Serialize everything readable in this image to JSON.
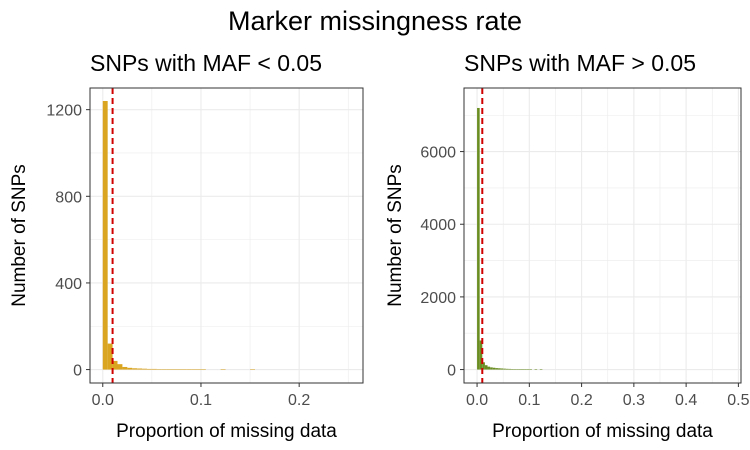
{
  "title": "Marker missingness rate",
  "chart_data": [
    {
      "type": "bar",
      "title": "SNPs with MAF < 0.05",
      "xlabel": "Proportion of missing data",
      "ylabel": "Number of SNPs",
      "xlim": [
        -0.013,
        0.265
      ],
      "ylim": [
        -62,
        1300
      ],
      "xticks": [
        0.0,
        0.1,
        0.2
      ],
      "xtick_labels": [
        "0.0",
        "0.1",
        "0.2"
      ],
      "yticks": [
        0,
        400,
        800,
        1200
      ],
      "ytick_labels": [
        "0",
        "400",
        "800",
        "1200"
      ],
      "bin_width": 0.005,
      "bin_starts": [
        0.0,
        0.005,
        0.01,
        0.015,
        0.02,
        0.025,
        0.03,
        0.035,
        0.04,
        0.045,
        0.05,
        0.055,
        0.06,
        0.065,
        0.07,
        0.075,
        0.08,
        0.085,
        0.09,
        0.095,
        0.1,
        0.12,
        0.15
      ],
      "values": [
        1240,
        120,
        40,
        25,
        12,
        8,
        6,
        5,
        4,
        3,
        3,
        2,
        2,
        2,
        2,
        2,
        1,
        1,
        1,
        1,
        2,
        1,
        1
      ],
      "bar_color": "#DAA520",
      "threshold": 0.01,
      "threshold_color": "#D00000",
      "grid": true
    },
    {
      "type": "bar",
      "title": "SNPs with MAF > 0.05",
      "xlabel": "Proportion of missing data",
      "ylabel": "Number of SNPs",
      "xlim": [
        -0.025,
        0.505
      ],
      "ylim": [
        -370,
        7750
      ],
      "xticks": [
        0.0,
        0.1,
        0.2,
        0.3,
        0.4,
        0.5
      ],
      "xtick_labels": [
        "0.0",
        "0.1",
        "0.2",
        "0.3",
        "0.4",
        "0.5"
      ],
      "yticks": [
        0,
        2000,
        4000,
        6000
      ],
      "ytick_labels": [
        "0",
        "2000",
        "4000",
        "6000"
      ],
      "bin_width": 0.005,
      "bin_starts": [
        0.0,
        0.005,
        0.01,
        0.015,
        0.02,
        0.025,
        0.03,
        0.035,
        0.04,
        0.045,
        0.05,
        0.055,
        0.06,
        0.065,
        0.07,
        0.075,
        0.08,
        0.085,
        0.09,
        0.095,
        0.1,
        0.11,
        0.12
      ],
      "values": [
        7200,
        800,
        200,
        120,
        80,
        60,
        50,
        40,
        35,
        30,
        25,
        20,
        18,
        15,
        12,
        10,
        8,
        6,
        5,
        5,
        4,
        3,
        2
      ],
      "bar_color": "#6B8E23",
      "threshold": 0.01,
      "threshold_color": "#D00000",
      "grid": true
    }
  ]
}
